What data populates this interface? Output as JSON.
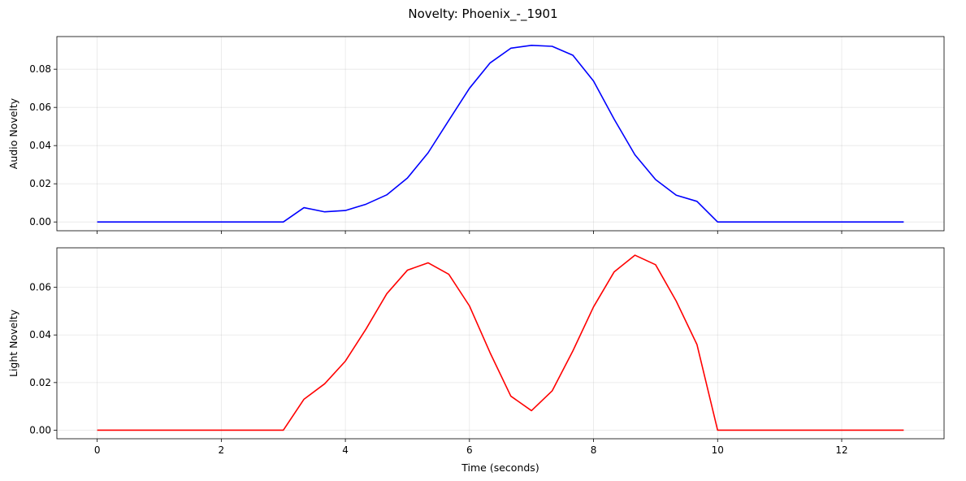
{
  "figure": {
    "title": "Novelty: Phoenix_-_1901"
  },
  "chart_data": [
    {
      "type": "line",
      "ylabel": "Audio Novelty",
      "xlabel": "",
      "xlim": [
        -0.65,
        13.65
      ],
      "ylim": [
        -0.0046,
        0.0971
      ],
      "xticks": [
        0,
        2,
        4,
        6,
        8,
        10,
        12
      ],
      "xtick_labels_visible": false,
      "yticks": [
        0.0,
        0.02,
        0.04,
        0.06,
        0.08
      ],
      "ytick_labels": [
        "0.00",
        "0.02",
        "0.04",
        "0.06",
        "0.08"
      ],
      "grid": true,
      "series": [
        {
          "color": "#0000ff",
          "x": [
            0,
            0.333,
            0.667,
            1.0,
            1.333,
            1.667,
            2.0,
            2.333,
            2.667,
            3.0,
            3.333,
            3.667,
            4.0,
            4.333,
            4.667,
            5.0,
            5.333,
            5.667,
            6.0,
            6.333,
            6.667,
            7.0,
            7.333,
            7.667,
            8.0,
            8.333,
            8.667,
            9.0,
            9.333,
            9.667,
            10.0,
            10.333,
            10.667,
            11.0,
            11.333,
            11.667,
            12.0,
            12.333,
            12.667,
            13.0
          ],
          "y": [
            0,
            0,
            0,
            0,
            0,
            0,
            0,
            0,
            0,
            0,
            0.0075,
            0.0053,
            0.006,
            0.0093,
            0.0142,
            0.023,
            0.0362,
            0.0532,
            0.07,
            0.0833,
            0.091,
            0.0925,
            0.092,
            0.0873,
            0.0738,
            0.0538,
            0.0352,
            0.0222,
            0.014,
            0.0108,
            0,
            0,
            0,
            0,
            0,
            0,
            0,
            0,
            0,
            0
          ]
        }
      ]
    },
    {
      "type": "line",
      "ylabel": "Light Novelty",
      "xlabel": "Time (seconds)",
      "xlim": [
        -0.65,
        13.65
      ],
      "ylim": [
        -0.0036,
        0.0766
      ],
      "xticks": [
        0,
        2,
        4,
        6,
        8,
        10,
        12
      ],
      "xtick_labels": [
        "0",
        "2",
        "4",
        "6",
        "8",
        "10",
        "12"
      ],
      "xtick_labels_visible": true,
      "yticks": [
        0.0,
        0.02,
        0.04,
        0.06
      ],
      "ytick_labels": [
        "0.00",
        "0.02",
        "0.04",
        "0.06"
      ],
      "grid": true,
      "series": [
        {
          "color": "#ff0000",
          "x": [
            0,
            0.333,
            0.667,
            1.0,
            1.333,
            1.667,
            2.0,
            2.333,
            2.667,
            3.0,
            3.333,
            3.667,
            4.0,
            4.333,
            4.667,
            5.0,
            5.333,
            5.667,
            6.0,
            6.333,
            6.667,
            7.0,
            7.333,
            7.667,
            8.0,
            8.333,
            8.667,
            9.0,
            9.333,
            9.667,
            10.0,
            10.333,
            10.667,
            11.0,
            11.333,
            11.667,
            12.0,
            12.333,
            12.667,
            13.0
          ],
          "y": [
            0,
            0,
            0,
            0,
            0,
            0,
            0,
            0,
            0,
            0,
            0.013,
            0.0195,
            0.029,
            0.0425,
            0.0573,
            0.0672,
            0.0703,
            0.0655,
            0.0522,
            0.0325,
            0.0143,
            0.0082,
            0.0165,
            0.0333,
            0.0518,
            0.0665,
            0.0735,
            0.0695,
            0.0542,
            0.036,
            0,
            0,
            0,
            0,
            0,
            0,
            0,
            0,
            0,
            0
          ]
        }
      ]
    }
  ]
}
